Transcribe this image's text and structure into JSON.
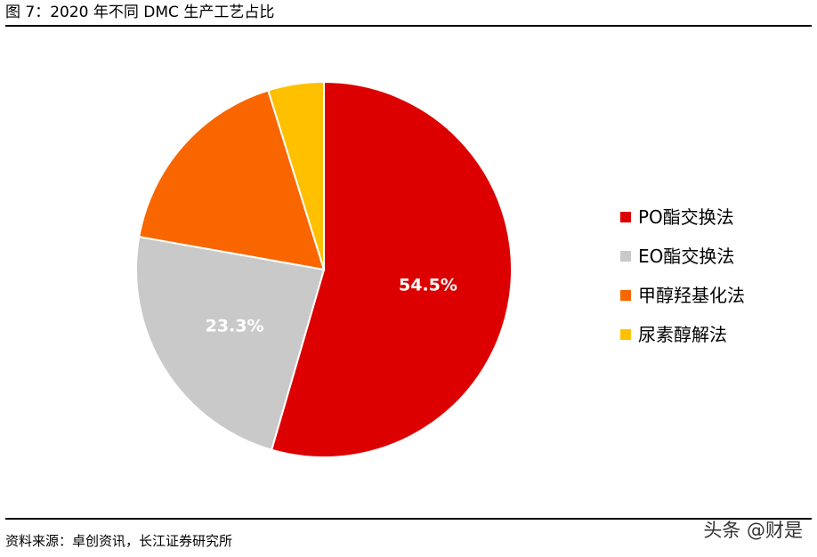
{
  "header": {
    "title": "图 7：2020 年不同 DMC 生产工艺占比"
  },
  "footer": {
    "source": "资料来源：卓创资讯，长江证券研究所",
    "watermark": "头条 @财是"
  },
  "chart_data": {
    "type": "pie",
    "title": "图 7：2020 年不同 DMC 生产工艺占比",
    "slices": [
      {
        "label": "PO酯交换法",
        "value": 54.5,
        "color": "#DD0000",
        "data_label": "54.5%"
      },
      {
        "label": "EO酯交换法",
        "value": 23.3,
        "color": "#C9C9C9",
        "data_label": "23.3%"
      },
      {
        "label": "甲醇羟基化法",
        "value": 17.4,
        "color": "#F96600",
        "data_label": ""
      },
      {
        "label": "尿素醇解法",
        "value": 4.8,
        "color": "#FFC000",
        "data_label": ""
      }
    ],
    "legend_position": "right"
  }
}
